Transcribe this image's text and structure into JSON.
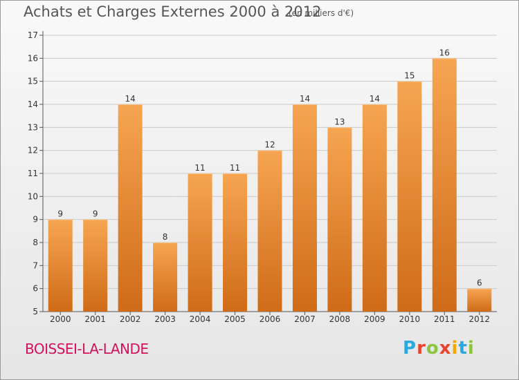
{
  "header": {
    "title": "Achats et Charges Externes 2000 à 2012",
    "unit": "(en milliers d'€)"
  },
  "footer": {
    "commune": "BOISSEI-LA-LANDE",
    "logo": {
      "text": "Proxiti",
      "letters": [
        "P",
        "r",
        "o",
        "x",
        "i",
        "t",
        "i"
      ],
      "colors": [
        "#2aa8e0",
        "#e8432e",
        "#8cc63f",
        "#e8432e",
        "#f7a800",
        "#2aa8e0",
        "#8cc63f"
      ]
    }
  },
  "colors": {
    "bar_light": "#f6a552",
    "bar_dark": "#cf6b18",
    "grid": "#c9c9c9",
    "commune": "#d4105a"
  },
  "chart_data": {
    "type": "bar",
    "title": "Achats et Charges Externes 2000 à 2012",
    "subtitle": "(en milliers d'€)",
    "categories": [
      "2000",
      "2001",
      "2002",
      "2003",
      "2004",
      "2005",
      "2006",
      "2007",
      "2008",
      "2009",
      "2010",
      "2011",
      "2012"
    ],
    "values": [
      9,
      9,
      14,
      8,
      11,
      11,
      12,
      14,
      13,
      14,
      15,
      16,
      6
    ],
    "ylim": [
      5,
      17
    ],
    "yticks": [
      5,
      6,
      7,
      8,
      9,
      10,
      11,
      12,
      13,
      14,
      15,
      16,
      17
    ],
    "grid": "horizontal",
    "data_labels": true
  }
}
